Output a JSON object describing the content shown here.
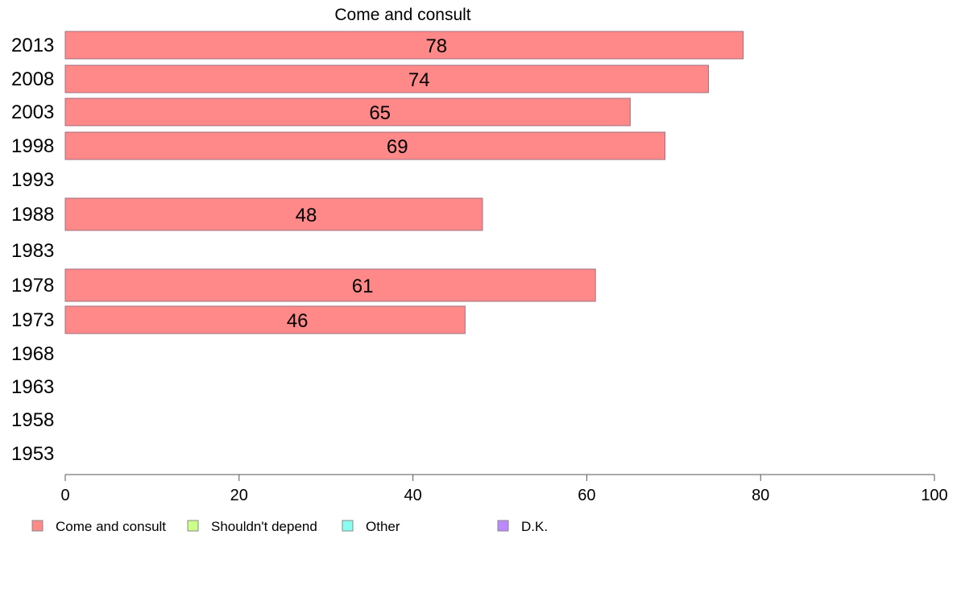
{
  "chart_data": {
    "type": "bar",
    "orientation": "horizontal",
    "title": "Come and consult",
    "xlabel": "",
    "ylabel": "",
    "categories": [
      "2013",
      "2008",
      "2003",
      "1998",
      "1993",
      "1988",
      "1983",
      "1978",
      "1973",
      "1968",
      "1963",
      "1958",
      "1953"
    ],
    "series": [
      {
        "name": "Come and consult",
        "color": "#ff8888",
        "values": [
          78,
          74,
          65,
          69,
          null,
          48,
          null,
          61,
          46,
          null,
          null,
          null,
          null
        ]
      }
    ],
    "data_labels": [
      "78",
      "74",
      "65",
      "69",
      "",
      "48",
      "",
      "61",
      "46",
      "",
      "",
      "",
      ""
    ],
    "xlim": [
      0,
      100
    ],
    "xticks": [
      "0",
      "20",
      "40",
      "60",
      "80",
      "100"
    ],
    "grid": false,
    "legend": {
      "position": "bottom-left",
      "entries": [
        {
          "label": "Come and consult",
          "color": "#ff8888"
        },
        {
          "label": "Shouldn't depend",
          "color": "#ccff88"
        },
        {
          "label": "Other",
          "color": "#88ffee"
        },
        {
          "label": "D.K.",
          "color": "#bb88ff"
        }
      ]
    }
  }
}
